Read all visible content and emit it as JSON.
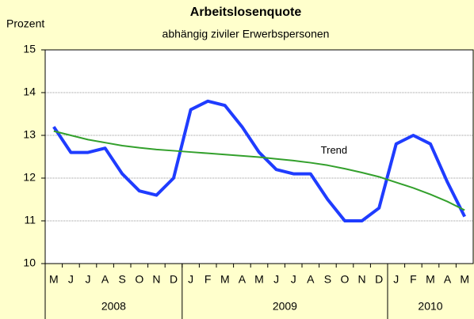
{
  "chart_data": {
    "type": "line",
    "title": "Arbeitslosenquote",
    "subtitle": "abhängig ziviler Erwerbspersonen",
    "y_label": "Prozent",
    "year_groups": [
      {
        "label": "2008",
        "months": [
          "M",
          "J",
          "J",
          "A",
          "S",
          "O",
          "N",
          "D"
        ]
      },
      {
        "label": "2009",
        "months": [
          "J",
          "F",
          "M",
          "A",
          "M",
          "J",
          "J",
          "A",
          "S",
          "O",
          "N",
          "D"
        ]
      },
      {
        "label": "2010",
        "months": [
          "J",
          "F",
          "M",
          "A",
          "M"
        ]
      }
    ],
    "series": [
      {
        "color": "#1f3cff",
        "values": [
          13.2,
          12.6,
          12.6,
          12.7,
          12.1,
          11.7,
          11.6,
          12.0,
          13.6,
          13.8,
          13.7,
          13.2,
          12.6,
          12.2,
          12.1,
          12.1,
          11.5,
          11.0,
          11.0,
          11.3,
          12.8,
          13.0,
          12.8,
          11.9,
          11.1
        ]
      },
      {
        "name": "Trend",
        "color": "#33a02c",
        "values": [
          13.1,
          13.0,
          12.9,
          12.83,
          12.76,
          12.71,
          12.67,
          12.64,
          12.61,
          12.58,
          12.55,
          12.52,
          12.49,
          12.45,
          12.41,
          12.36,
          12.3,
          12.22,
          12.13,
          12.03,
          11.9,
          11.77,
          11.62,
          11.45,
          11.25
        ]
      }
    ],
    "ylim": [
      10,
      15
    ],
    "yticks": [
      10,
      11,
      12,
      13,
      14,
      15
    ],
    "grid": true
  }
}
